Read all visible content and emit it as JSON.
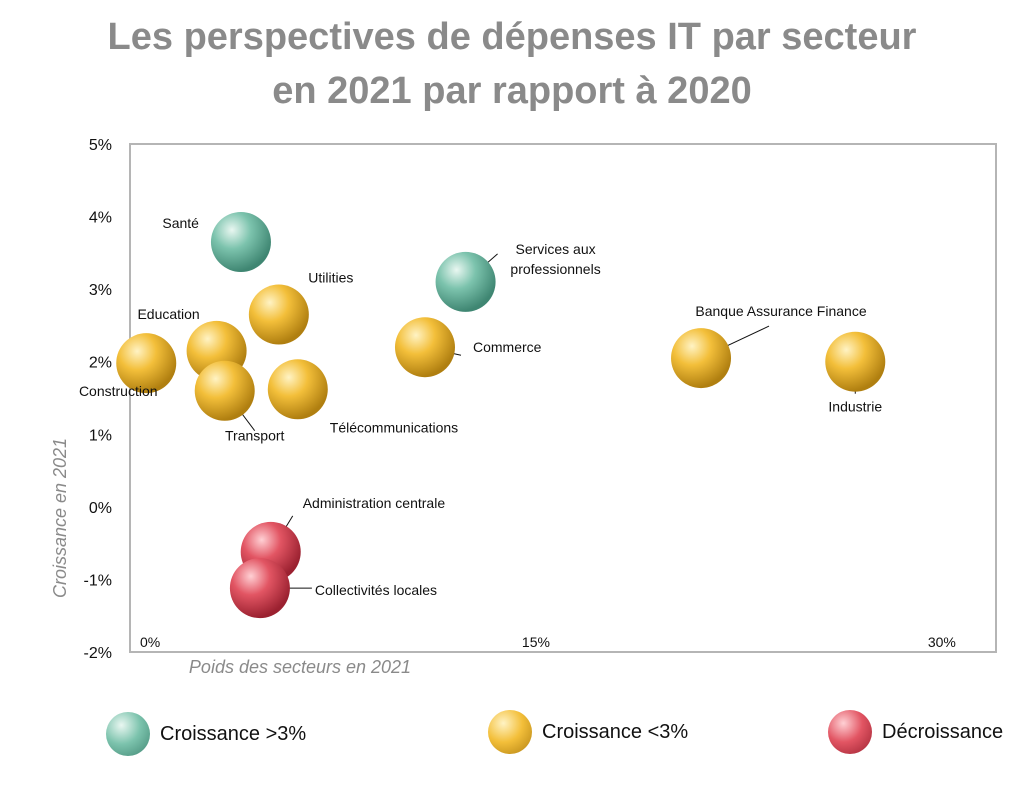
{
  "chart_data": {
    "type": "scatter",
    "title_line1": "Les perspectives de dépenses IT par secteur",
    "title_line2": "en 2021 par rapport à 2020",
    "xlabel": "Poids des secteurs en 2021",
    "ylabel": "Croissance en 2021",
    "xlim": [
      0,
      32
    ],
    "ylim": [
      -2,
      5
    ],
    "x_ticks": [
      "0%",
      "15%",
      "30%"
    ],
    "x_tick_values": [
      0,
      15,
      30
    ],
    "y_ticks": [
      "5%",
      "4%",
      "3%",
      "2%",
      "1%",
      "0%",
      "-1%",
      "-2%"
    ],
    "y_tick_values": [
      5,
      4,
      3,
      2,
      1,
      0,
      -1,
      -2
    ],
    "grid": false,
    "categories": {
      "high": {
        "label": "Croissance >3%",
        "color": "#7cc3ad"
      },
      "low": {
        "label": "Croissance <3%",
        "color": "#f3bf3a"
      },
      "neg": {
        "label": "Décroissance",
        "color": "#e25563"
      }
    },
    "points": [
      {
        "label": "Santé",
        "x": 4.1,
        "y": 3.65,
        "category": "high"
      },
      {
        "label": "Services aux professionnels",
        "x": 12.4,
        "y": 3.1,
        "category": "high"
      },
      {
        "label": "Utilities",
        "x": 5.5,
        "y": 2.65,
        "category": "low"
      },
      {
        "label": "Education",
        "x": 3.2,
        "y": 2.15,
        "category": "low"
      },
      {
        "label": "Construction",
        "x": 0.6,
        "y": 1.98,
        "category": "low"
      },
      {
        "label": "Transport",
        "x": 3.5,
        "y": 1.6,
        "category": "low"
      },
      {
        "label": "Télécommunications",
        "x": 6.2,
        "y": 1.62,
        "category": "low"
      },
      {
        "label": "Commerce",
        "x": 10.9,
        "y": 2.2,
        "category": "low"
      },
      {
        "label": "Banque Assurance Finance",
        "x": 21.1,
        "y": 2.05,
        "category": "low"
      },
      {
        "label": "Industrie",
        "x": 26.8,
        "y": 2.0,
        "category": "low"
      },
      {
        "label": "Administration centrale",
        "x": 5.2,
        "y": -0.62,
        "category": "neg"
      },
      {
        "label": "Collectivités locales",
        "x": 4.8,
        "y": -1.12,
        "category": "neg"
      }
    ]
  }
}
